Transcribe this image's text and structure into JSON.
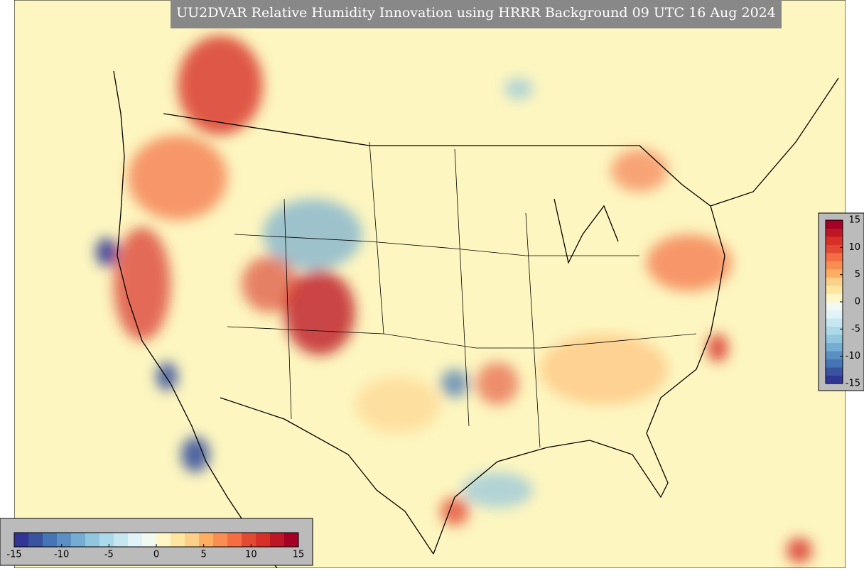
{
  "title": "UU2DVAR Relative Humidity Innovation using HRRR Background 09 UTC 16 Aug 2024",
  "colorbar": {
    "range": [
      -15,
      15
    ],
    "ticks": [
      -15,
      -10,
      -5,
      0,
      5,
      10,
      15
    ],
    "colors": [
      "#313695",
      "#3a539f",
      "#4575b4",
      "#5b8fc2",
      "#74add1",
      "#92c5de",
      "#abd9e9",
      "#c6e6f0",
      "#e0f3f8",
      "#f1f9f0",
      "#fff7c8",
      "#fee6a0",
      "#fdd08a",
      "#fdae61",
      "#f98e52",
      "#f46d43",
      "#e34a33",
      "#d73027",
      "#bd1726",
      "#a50026"
    ]
  }
}
